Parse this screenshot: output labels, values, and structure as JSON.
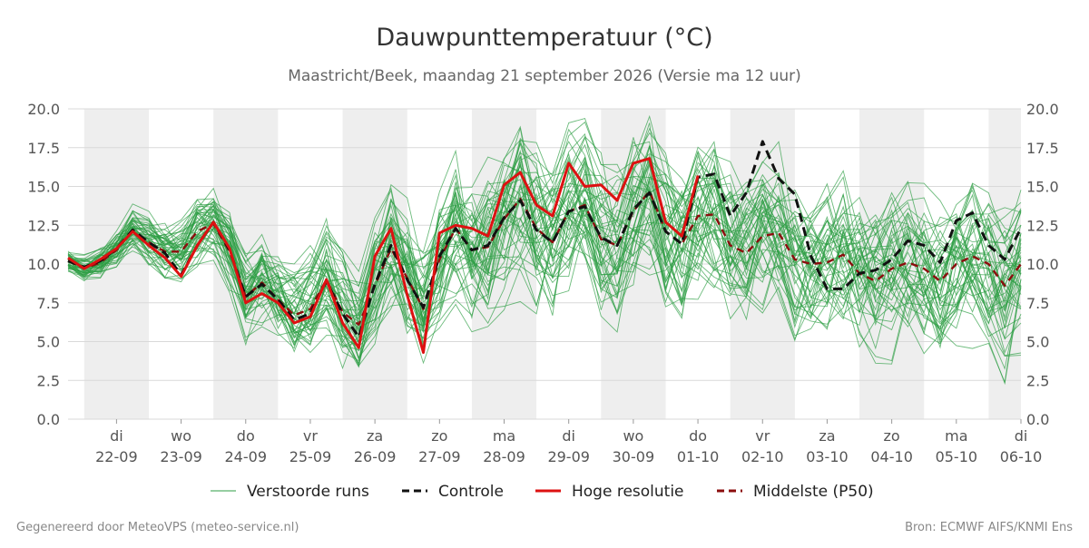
{
  "chart_data": {
    "type": "line",
    "title": "Dauwpunttemperatuur (°C)",
    "subtitle": "Maastricht/Beek, maandag 21 september 2026 (Versie ma 12 uur)",
    "footer_left": "Gegenereerd door MeteoVPS (meteo-service.nl)",
    "footer_right": "Bron: ECMWF AIFS/KNMI Ens",
    "ylim": [
      0,
      20
    ],
    "yticks": [
      "0.0",
      "2.5",
      "5.0",
      "7.5",
      "10.0",
      "12.5",
      "15.0",
      "17.5",
      "20.0"
    ],
    "ytick_values": [
      0,
      2.5,
      5,
      7.5,
      10,
      12.5,
      15,
      17.5,
      20
    ],
    "xlim": [
      -0.25,
      14.5
    ],
    "x_ticks": [
      {
        "day": "di",
        "date": "22-09"
      },
      {
        "day": "wo",
        "date": "23-09"
      },
      {
        "day": "do",
        "date": "24-09"
      },
      {
        "day": "vr",
        "date": "25-09"
      },
      {
        "day": "za",
        "date": "26-09"
      },
      {
        "day": "zo",
        "date": "27-09"
      },
      {
        "day": "ma",
        "date": "28-09"
      },
      {
        "day": "di",
        "date": "29-09"
      },
      {
        "day": "wo",
        "date": "30-09"
      },
      {
        "day": "do",
        "date": "01-10"
      },
      {
        "day": "vr",
        "date": "02-10"
      },
      {
        "day": "za",
        "date": "03-10"
      },
      {
        "day": "zo",
        "date": "04-10"
      },
      {
        "day": "ma",
        "date": "05-10"
      },
      {
        "day": "di",
        "date": "06-10"
      }
    ],
    "shaded_days": [
      0,
      2,
      4,
      6,
      8,
      10,
      12,
      14
    ],
    "x_step_days": 0.25,
    "x_start": -0.25,
    "legend": {
      "placement": "bottom",
      "items": [
        {
          "label": "Verstoorde runs",
          "color": "#2e9e44",
          "style": "thin"
        },
        {
          "label": "Controle",
          "color": "#111111",
          "style": "dashed"
        },
        {
          "label": "Hoge resolutie",
          "color": "#dd1111",
          "style": "solid"
        },
        {
          "label": "Middelste (P50)",
          "color": "#8b0d0d",
          "style": "dashed"
        }
      ]
    },
    "series": [
      {
        "name": "Hoge resolutie",
        "color": "#dd1111",
        "values": [
          10.4,
          9.7,
          10.3,
          11.0,
          12.1,
          11.2,
          10.4,
          9.2,
          11.2,
          12.7,
          11.0,
          7.5,
          8.1,
          7.5,
          6.2,
          6.6,
          9.0,
          6.2,
          4.6,
          10.5,
          12.3,
          8.0,
          4.3,
          12.0,
          12.5,
          12.3,
          11.8,
          15.1,
          15.9,
          13.8,
          13.1,
          16.5,
          15.0,
          15.1,
          14.1,
          16.5,
          16.8,
          12.7,
          11.8,
          15.7
        ]
      },
      {
        "name": "Controle",
        "color": "#111111",
        "values": [
          10.2,
          9.8,
          10.2,
          11.0,
          12.2,
          11.4,
          10.7,
          9.3,
          11.2,
          12.7,
          10.9,
          7.9,
          8.7,
          7.7,
          6.4,
          6.8,
          8.9,
          6.8,
          5.3,
          8.7,
          11.2,
          9.0,
          7.2,
          10.5,
          12.3,
          10.9,
          11.2,
          13.0,
          14.1,
          12.2,
          11.4,
          13.4,
          13.7,
          11.7,
          11.2,
          13.5,
          14.6,
          12.1,
          11.3,
          15.6,
          15.8,
          13.1,
          14.6,
          17.9,
          15.5,
          14.5,
          10.5,
          8.4,
          8.4,
          9.4,
          9.6,
          10.3,
          11.5,
          11.2,
          10.1,
          12.8,
          13.3,
          11.2,
          10.3,
          12.3
        ]
      },
      {
        "name": "Middelste (P50)",
        "color": "#8b0d0d",
        "values": [
          10.2,
          9.7,
          10.1,
          10.9,
          12.2,
          11.4,
          10.8,
          10.8,
          12.1,
          12.6,
          10.8,
          7.9,
          8.8,
          7.7,
          6.7,
          7.1,
          9.0,
          6.9,
          6.1,
          8.6,
          11.0,
          9.1,
          7.1,
          10.3,
          12.3,
          10.9,
          11.1,
          12.9,
          14.2,
          12.3,
          11.4,
          13.4,
          13.8,
          11.6,
          11.2,
          13.4,
          14.7,
          12.1,
          11.3,
          13.1,
          13.2,
          11.2,
          10.7,
          11.8,
          12.0,
          10.3,
          10.0,
          10.1,
          10.6,
          9.4,
          8.9,
          9.7,
          10.1,
          9.7,
          8.9,
          10.0,
          10.5,
          10.0,
          8.6,
          10.0
        ]
      }
    ],
    "ensemble": {
      "name": "Verstoorde runs",
      "color": "#2e9e44",
      "count": 50,
      "seed": 17,
      "spread_start": 0.5,
      "spread_growth": 0.12,
      "spread_max": 3.6
    }
  }
}
